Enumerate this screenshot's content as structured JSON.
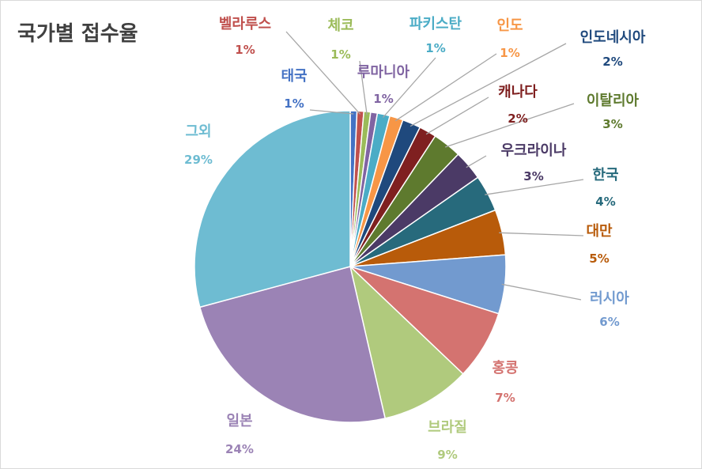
{
  "chart_data": {
    "type": "pie",
    "title": "국가별 접수율",
    "start_angle_deg": 0,
    "direction": "clockwise",
    "slices": [
      {
        "label": "태국",
        "value": 0.7,
        "value_label": "1%",
        "color": "#4472C4"
      },
      {
        "label": "벨라루스",
        "value": 0.7,
        "value_label": "1%",
        "color": "#C0504D"
      },
      {
        "label": "체코",
        "value": 0.7,
        "value_label": "1%",
        "color": "#9BBB59"
      },
      {
        "label": "루마니아",
        "value": 0.7,
        "value_label": "1%",
        "color": "#8064A2"
      },
      {
        "label": "파키스탄",
        "value": 1.3,
        "value_label": "1%",
        "color": "#4BACC6"
      },
      {
        "label": "인도",
        "value": 1.4,
        "value_label": "1%",
        "color": "#F79646"
      },
      {
        "label": "인도네시아",
        "value": 1.9,
        "value_label": "2%",
        "color": "#1F497D"
      },
      {
        "label": "캐나다",
        "value": 1.8,
        "value_label": "2%",
        "color": "#7F2020"
      },
      {
        "label": "이탈리아",
        "value": 3.0,
        "value_label": "3%",
        "color": "#5E7A2E"
      },
      {
        "label": "우크라이나",
        "value": 3.1,
        "value_label": "3%",
        "color": "#4B3A66"
      },
      {
        "label": "한국",
        "value": 3.8,
        "value_label": "4%",
        "color": "#276A7C"
      },
      {
        "label": "대만",
        "value": 4.7,
        "value_label": "5%",
        "color": "#B85B0A"
      },
      {
        "label": "러시아",
        "value": 6.1,
        "value_label": "6%",
        "color": "#729ACF"
      },
      {
        "label": "홍콩",
        "value": 7.2,
        "value_label": "7%",
        "color": "#D47370"
      },
      {
        "label": "브라질",
        "value": 9.3,
        "value_label": "9%",
        "color": "#B0CA7D"
      },
      {
        "label": "일본",
        "value": 24.4,
        "value_label": "24%",
        "color": "#9B83B5"
      },
      {
        "label": "그외",
        "value": 29.2,
        "value_label": "29%",
        "color": "#6EBCD2"
      }
    ]
  }
}
